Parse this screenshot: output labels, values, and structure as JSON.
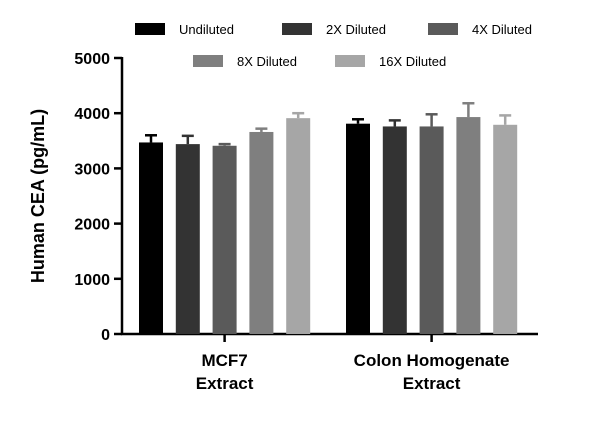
{
  "chart_data": {
    "type": "bar",
    "title": "",
    "ylabel": "Human CEA (pg/mL)",
    "xlabel": "",
    "ylim": [
      0,
      5000
    ],
    "yticks": [
      0,
      1000,
      2000,
      3000,
      4000,
      5000
    ],
    "categories": [
      {
        "lines": [
          "MCF7",
          "Extract"
        ]
      },
      {
        "lines": [
          "Colon Homogenate",
          "Extract"
        ]
      }
    ],
    "series": [
      {
        "name": "Undiluted",
        "color": "#000000",
        "values": [
          3470,
          3810
        ],
        "errors": [
          130,
          80
        ]
      },
      {
        "name": "2X Diluted",
        "color": "#333333",
        "values": [
          3440,
          3760
        ],
        "errors": [
          150,
          110
        ]
      },
      {
        "name": "4X Diluted",
        "color": "#5a5a5a",
        "values": [
          3410,
          3760
        ],
        "errors": [
          30,
          220
        ]
      },
      {
        "name": "8X Diluted",
        "color": "#7f7f7f",
        "values": [
          3660,
          3930
        ],
        "errors": [
          60,
          250
        ]
      },
      {
        "name": "16X Diluted",
        "color": "#a6a6a6",
        "values": [
          3910,
          3790
        ],
        "errors": [
          90,
          170
        ]
      }
    ],
    "grid": false,
    "legend": "top"
  }
}
